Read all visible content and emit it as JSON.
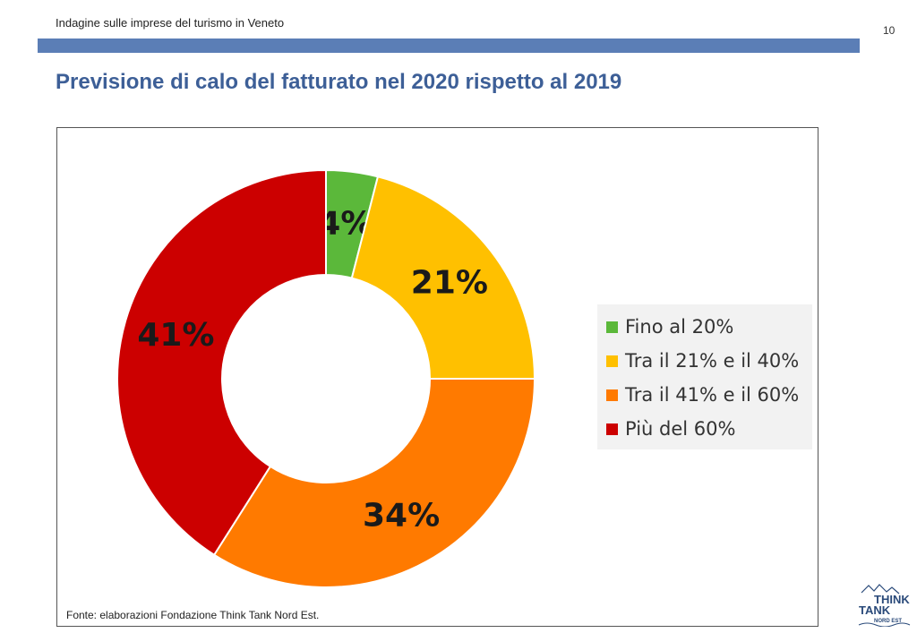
{
  "header": {
    "subtitle": "Indagine sulle imprese del turismo in Veneto",
    "page_number": "10",
    "title": "Previsione di calo del fatturato nel 2020 rispetto al 2019"
  },
  "chart_data": {
    "type": "pie",
    "donut": true,
    "categories": [
      "Fino al 20%",
      "Tra il 21% e il 40%",
      "Tra il 41% e il 60%",
      "Più del 60%"
    ],
    "values": [
      4,
      21,
      34,
      41
    ],
    "labels": [
      "4%",
      "21%",
      "34%",
      "41%"
    ],
    "colors": [
      "#5bb83a",
      "#ffc000",
      "#ff7a00",
      "#cc0000"
    ],
    "legend_position": "right"
  },
  "source": "Fonte: elaborazioni Fondazione Think Tank Nord Est.",
  "logo": {
    "line1": "THINK",
    "line2": "TANK",
    "line3": "NORD EST"
  }
}
